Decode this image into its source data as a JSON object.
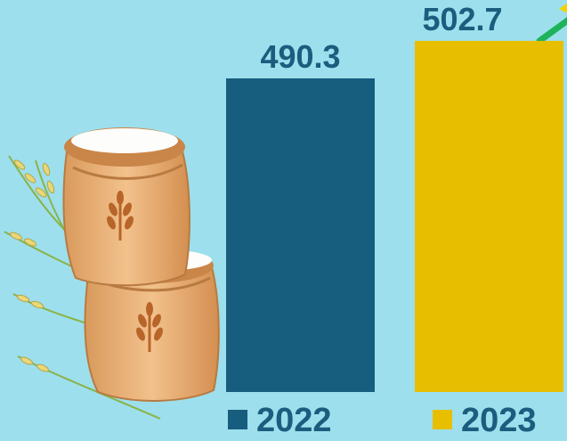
{
  "chart_data": {
    "type": "bar",
    "categories": [
      "2022",
      "2023"
    ],
    "values": [
      490.3,
      502.7
    ],
    "value_labels": [
      "490.3",
      "502.7"
    ],
    "colors": [
      "#175d7e",
      "#e8be00"
    ],
    "legend": [
      "2022",
      "2023"
    ],
    "legend_placement": "bottom",
    "grid": false,
    "title": "",
    "xlabel": "",
    "ylabel": ""
  },
  "colors": {
    "background": "#9ddfec",
    "text": "#1a5d7e",
    "arrow": "#1db35a"
  },
  "icons": [
    "rice-sack-icon",
    "rice-stalk-icon",
    "wheat-emblem-icon",
    "trend-arrow-icon"
  ]
}
